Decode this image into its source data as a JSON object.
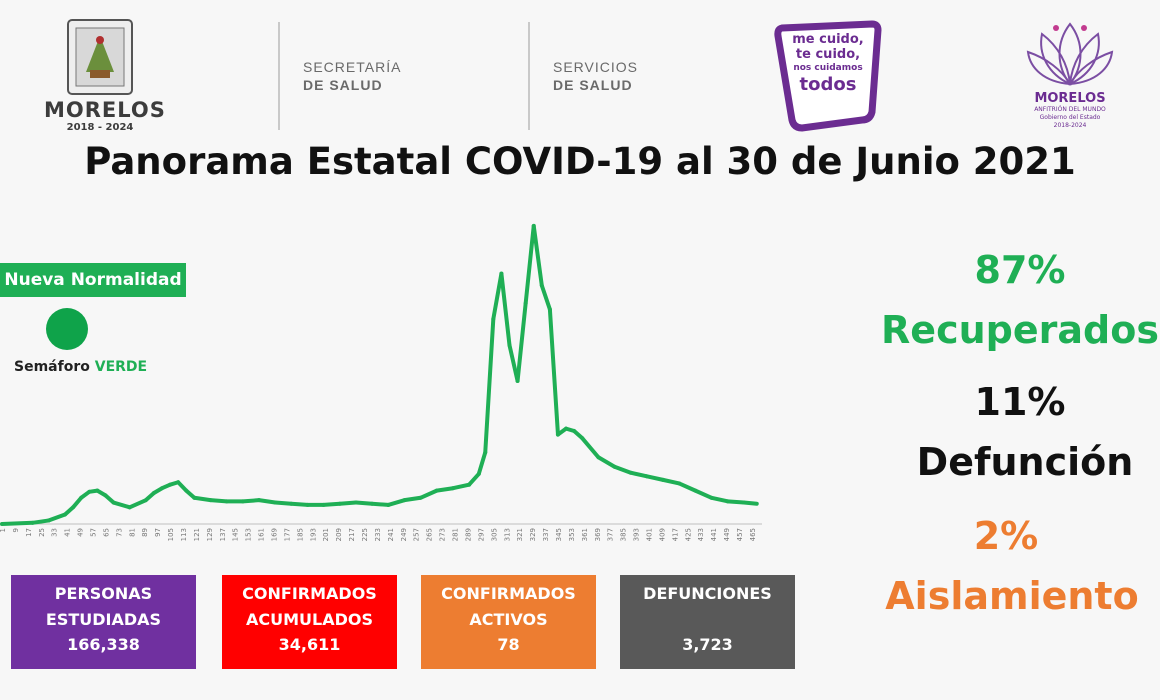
{
  "header": {
    "morelos_logo": {
      "name": "MORELOS",
      "years": "2018 - 2024"
    },
    "secretaria": {
      "line1": "SECRETARÍA",
      "line2": "DE SALUD"
    },
    "servicios": {
      "line1": "SERVICIOS",
      "line2": "DE SALUD"
    },
    "campaign": {
      "line1": "me cuido,",
      "line2": "te cuido,",
      "line3": "nos cuidamos",
      "line4": "todos"
    },
    "gov_logo": {
      "name": "MORELOS",
      "tagline": "ANFITRIÓN DEL MUNDO",
      "sub1": "Gobierno del Estado",
      "sub2": "2018-2024"
    }
  },
  "title": "Panorama Estatal COVID-19 al 30 de Junio 2021",
  "semaforo": {
    "badge": "Nueva Normalidad",
    "label": "Semáforo",
    "status": "VERDE",
    "color": "#0fa34a"
  },
  "stats": {
    "recuperados_pct": "87%",
    "recuperados_label": "Recuperados",
    "defuncion_pct": "11%",
    "defuncion_label": "Defunción",
    "aislamiento_pct": "2%",
    "aislamiento_label": "Aislamiento"
  },
  "cards": [
    {
      "line1": "PERSONAS",
      "line2": "ESTUDIADAS",
      "value": "166,338",
      "color": "#7030a0"
    },
    {
      "line1": "CONFIRMADOS",
      "line2": "ACUMULADOS",
      "value": "34,611",
      "color": "#ff0000"
    },
    {
      "line1": "CONFIRMADOS",
      "line2": "ACTIVOS",
      "value": "78",
      "color": "#ed7d31"
    },
    {
      "line1": "DEFUNCIONES",
      "line2": "",
      "value": "3,723",
      "color": "#595959"
    }
  ],
  "colors": {
    "green": "#1faf55",
    "orange": "#ed7d31",
    "purple": "#7030a0",
    "red": "#ff0000",
    "gray": "#595959"
  },
  "chart_data": {
    "type": "line",
    "title": "",
    "xlabel": "",
    "ylabel": "",
    "grid": false,
    "legend": "none",
    "line_color": "#1faf55",
    "x_ticks": [
      1,
      9,
      17,
      25,
      33,
      41,
      49,
      57,
      65,
      73,
      81,
      89,
      97,
      105,
      113,
      121,
      129,
      137,
      145,
      153,
      161,
      169,
      177,
      185,
      193,
      201,
      209,
      217,
      225,
      233,
      241,
      249,
      257,
      265,
      273,
      281,
      289,
      297,
      305,
      313,
      321,
      329,
      337,
      345,
      353,
      361,
      369,
      377,
      385,
      393,
      401,
      409,
      417,
      425,
      433,
      441,
      449,
      457,
      465
    ],
    "x": [
      1,
      20,
      30,
      40,
      45,
      50,
      55,
      60,
      65,
      70,
      80,
      90,
      95,
      100,
      105,
      110,
      115,
      120,
      130,
      140,
      150,
      160,
      170,
      180,
      190,
      200,
      210,
      220,
      230,
      240,
      250,
      260,
      270,
      280,
      290,
      296,
      300,
      305,
      310,
      315,
      320,
      325,
      330,
      335,
      340,
      345,
      350,
      355,
      360,
      370,
      380,
      390,
      400,
      410,
      420,
      430,
      440,
      450,
      460,
      468
    ],
    "y": [
      0,
      1,
      3,
      8,
      14,
      22,
      27,
      28,
      24,
      18,
      14,
      20,
      26,
      30,
      33,
      35,
      28,
      22,
      20,
      19,
      19,
      20,
      18,
      17,
      16,
      16,
      17,
      18,
      17,
      16,
      20,
      22,
      28,
      30,
      33,
      42,
      60,
      172,
      210,
      150,
      120,
      185,
      250,
      200,
      180,
      75,
      80,
      78,
      72,
      56,
      48,
      43,
      40,
      37,
      34,
      28,
      22,
      19,
      18,
      17
    ],
    "ylim": [
      0,
      260
    ],
    "xlim": [
      1,
      470
    ]
  }
}
